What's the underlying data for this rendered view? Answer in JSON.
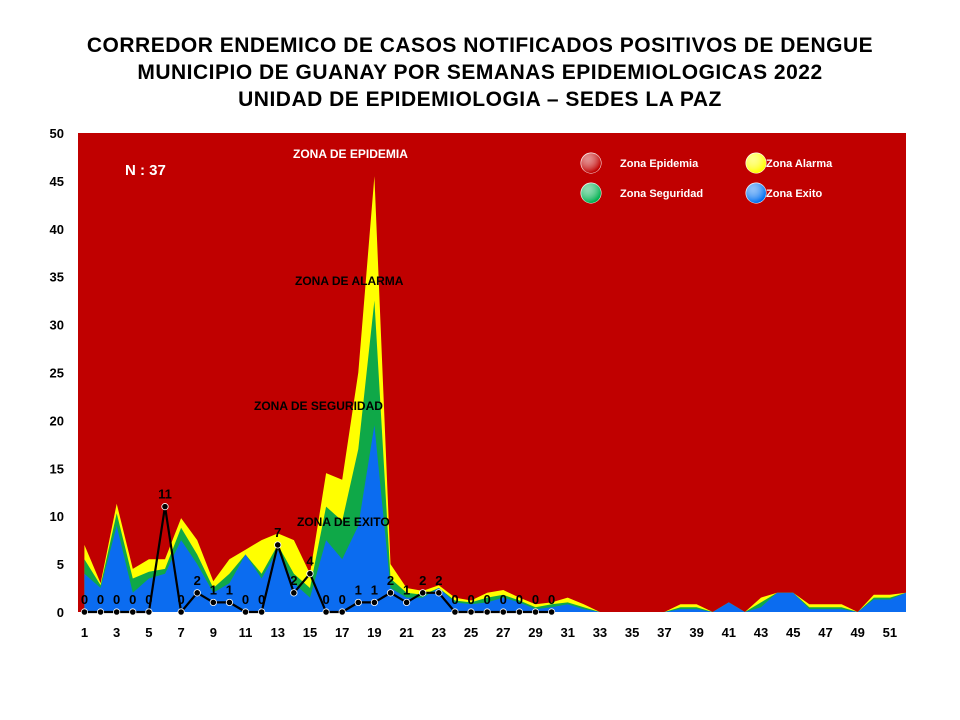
{
  "title": {
    "line1": "CORREDOR ENDEMICO DE CASOS NOTIFICADOS POSITIVOS DE DENGUE",
    "line2": "MUNICIPIO DE GUANAY POR SEMANAS EPIDEMIOLOGICAS 2022",
    "line3": "UNIDAD DE EPIDEMIOLOGIA – SEDES LA PAZ"
  },
  "n_label": "N : 37",
  "zone_labels": {
    "epidemia": "ZONA DE EPIDEMIA",
    "alarma": "ZONA DE ALARMA",
    "seguridad": "ZONA DE  SEGURIDAD",
    "exito": "ZONA DE  EXITO"
  },
  "legend": [
    {
      "name": "Zona Epidemia",
      "color": "#c00000"
    },
    {
      "name": "Zona Alarma",
      "color": "#ffff00"
    },
    {
      "name": "Zona Seguridad",
      "color": "#00b050"
    },
    {
      "name": "Zona Exito",
      "color": "#0070f0"
    }
  ],
  "colors": {
    "epidemia": "#c00000",
    "alarma": "#ffff00",
    "seguridad": "#0fa848",
    "exito": "#0b6cf0",
    "casos": "#000000"
  },
  "chart_data": {
    "type": "area",
    "x": [
      1,
      2,
      3,
      4,
      5,
      6,
      7,
      8,
      9,
      10,
      11,
      12,
      13,
      14,
      15,
      16,
      17,
      18,
      19,
      20,
      21,
      22,
      23,
      24,
      25,
      26,
      27,
      28,
      29,
      30,
      31,
      32,
      33,
      34,
      35,
      36,
      37,
      38,
      39,
      40,
      41,
      42,
      43,
      44,
      45,
      46,
      47,
      48,
      49,
      50,
      51,
      52
    ],
    "x_tick_labels": [
      "1",
      "3",
      "5",
      "7",
      "9",
      "11",
      "13",
      "15",
      "17",
      "19",
      "21",
      "23",
      "25",
      "27",
      "29",
      "31",
      "33",
      "35",
      "37",
      "39",
      "41",
      "43",
      "45",
      "47",
      "49",
      "51"
    ],
    "x_tick_values": [
      1,
      3,
      5,
      7,
      9,
      11,
      13,
      15,
      17,
      19,
      21,
      23,
      25,
      27,
      29,
      31,
      33,
      35,
      37,
      39,
      41,
      43,
      45,
      47,
      49,
      51
    ],
    "ylim": [
      0,
      50
    ],
    "y_ticks": [
      0,
      5,
      10,
      15,
      20,
      25,
      30,
      35,
      40,
      45,
      50
    ],
    "series": [
      {
        "name": "Zona Alarma",
        "values": [
          7,
          3,
          11.3,
          4.5,
          5.5,
          5.5,
          9.8,
          7.5,
          3.2,
          5.5,
          6.5,
          7.5,
          8.2,
          7.5,
          4,
          14.5,
          13.8,
          25,
          45.5,
          5,
          2.5,
          2.2,
          2.8,
          1.5,
          1.2,
          2,
          2.3,
          1.5,
          0.8,
          1,
          1.5,
          0.8,
          0,
          0,
          0,
          0,
          0,
          0.8,
          0.8,
          0,
          1,
          0,
          1.5,
          2,
          2,
          0.8,
          0.8,
          0.8,
          0,
          1.8,
          1.8,
          2
        ]
      },
      {
        "name": "Zona Seguridad",
        "values": [
          5.5,
          2.8,
          10.3,
          3.5,
          4.2,
          4.5,
          8.8,
          6,
          2.5,
          4,
          6,
          4,
          7,
          4,
          2.5,
          11,
          9.5,
          17,
          32.5,
          3.5,
          2,
          1.8,
          2.5,
          1.2,
          1,
          1.5,
          1.8,
          1.2,
          0.5,
          0.8,
          1,
          0.5,
          0,
          0,
          0,
          0,
          0,
          0.5,
          0.5,
          0,
          1,
          0,
          1,
          2,
          2,
          0.5,
          0.5,
          0.5,
          0,
          1.5,
          1.5,
          2
        ]
      },
      {
        "name": "Zona Exito",
        "values": [
          4,
          2.5,
          9,
          2,
          3.5,
          4,
          7.5,
          5,
          2,
          3,
          6,
          3.5,
          6.5,
          3,
          1.5,
          7.5,
          5.5,
          9,
          19.5,
          2.5,
          1.5,
          1.5,
          2.5,
          1,
          0.8,
          1,
          1.5,
          1,
          0.3,
          0.5,
          0.8,
          0.3,
          0,
          0,
          0,
          0,
          0,
          0.3,
          0.3,
          0,
          1,
          0,
          0.5,
          2,
          2,
          0.3,
          0.3,
          0.3,
          0,
          1.3,
          1.3,
          2
        ]
      },
      {
        "name": "Casos",
        "x": [
          1,
          2,
          3,
          4,
          5,
          6,
          7,
          8,
          9,
          10,
          11,
          12,
          13,
          14,
          15,
          16,
          17,
          18,
          19,
          20,
          21,
          22,
          23,
          24,
          25,
          26,
          27,
          28,
          29,
          30
        ],
        "values": [
          0,
          0,
          0,
          0,
          0,
          11,
          0,
          2,
          1,
          1,
          0,
          0,
          7,
          2,
          4,
          0,
          0,
          1,
          1,
          2,
          1,
          2,
          2,
          0,
          0,
          0,
          0,
          0,
          0,
          0
        ]
      }
    ]
  }
}
